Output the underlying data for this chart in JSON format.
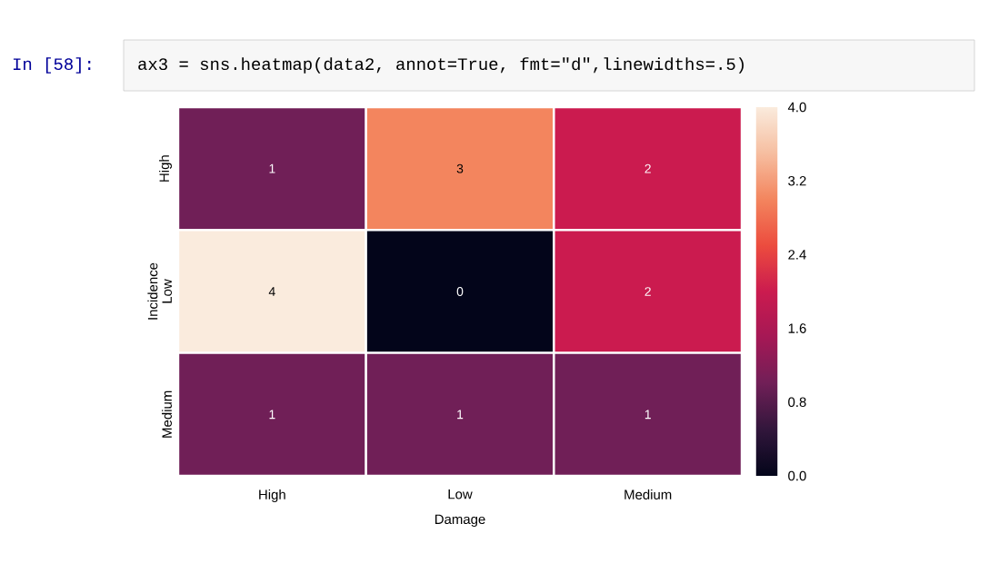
{
  "chart_data": {
    "type": "heatmap",
    "annotations": [
      "In [58]:",
      "ax3 = sns.heatmap(data2, annot=True, fmt=\"d\",linewidths=.5)"
    ],
    "xlabel": "Damage",
    "ylabel": "Incidence",
    "categories": [
      "High",
      "Low",
      "Medium"
    ],
    "y_categories": [
      "High",
      "Low",
      "Medium"
    ],
    "cells": [
      [
        1,
        3,
        2
      ],
      [
        4,
        0,
        2
      ],
      [
        1,
        1,
        1
      ]
    ],
    "data_labels": true,
    "clim": [
      0,
      4
    ],
    "cticks": [
      {
        "value": 0,
        "label": "0.0"
      },
      {
        "value": 0.8,
        "label": "0.8"
      },
      {
        "value": 1.6,
        "label": "1.6"
      },
      {
        "value": 2.4,
        "label": "2.4"
      },
      {
        "value": 3.2,
        "label": "3.2"
      },
      {
        "value": 4,
        "label": "4.0"
      }
    ]
  }
}
